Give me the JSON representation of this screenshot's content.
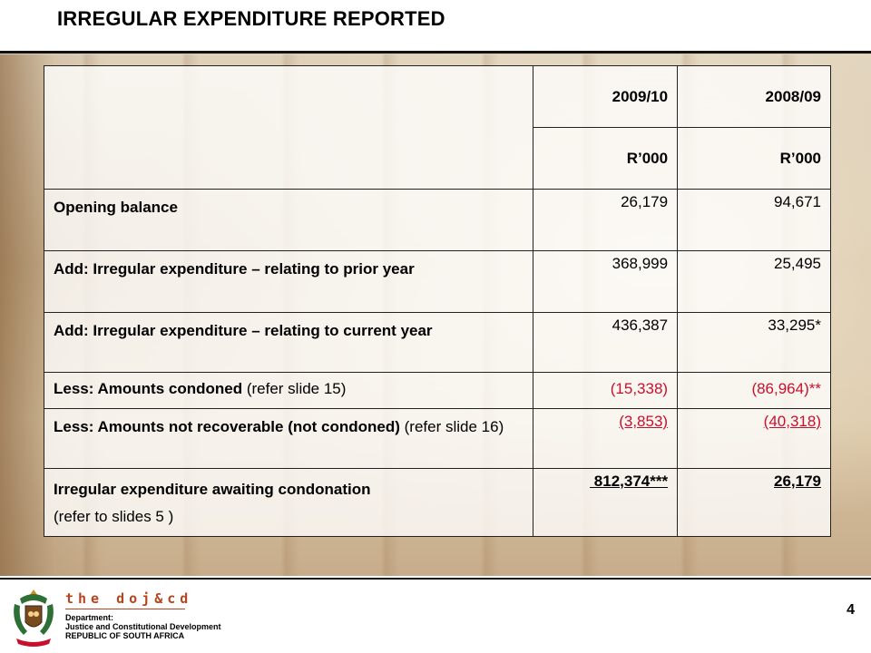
{
  "title": "IRREGULAR EXPENDITURE REPORTED",
  "table": {
    "headers": {
      "col1": "2009/10",
      "col2": "2008/09"
    },
    "units": {
      "col1": "R’000",
      "col2": "R’000"
    },
    "rows": [
      {
        "label": "Opening balance",
        "note": "",
        "v1": "26,179",
        "v2": "94,671"
      },
      {
        "label": "Add: Irregular expenditure – relating to prior year",
        "note": "",
        "v1": "368,999",
        "v2": "25,495"
      },
      {
        "label": "Add: Irregular expenditure – relating to current year",
        "note": "",
        "v1": "436,387",
        "v2": "33,295*"
      },
      {
        "label": "Less: Amounts condoned",
        "note": " (refer slide 15)",
        "v1": "(15,338)",
        "v2": "(86,964)**"
      },
      {
        "label": "Less: Amounts not recoverable (not condoned)",
        "note": " (refer slide 16)",
        "v1": "(3,853)",
        "v2": "(40,318)"
      },
      {
        "label": "Irregular expenditure awaiting condonation",
        "note": "(refer to slides 5 )",
        "v1": " 812,374***",
        "v2": "26,179"
      }
    ]
  },
  "footer": {
    "brand": "the doj&cd",
    "dept_line1": "Department:",
    "dept_line2": "Justice and Constitutional Development",
    "dept_line3": "REPUBLIC OF SOUTH AFRICA",
    "page_number": "4"
  },
  "colors": {
    "negative": "#c8102e",
    "brand": "#b5441f"
  }
}
